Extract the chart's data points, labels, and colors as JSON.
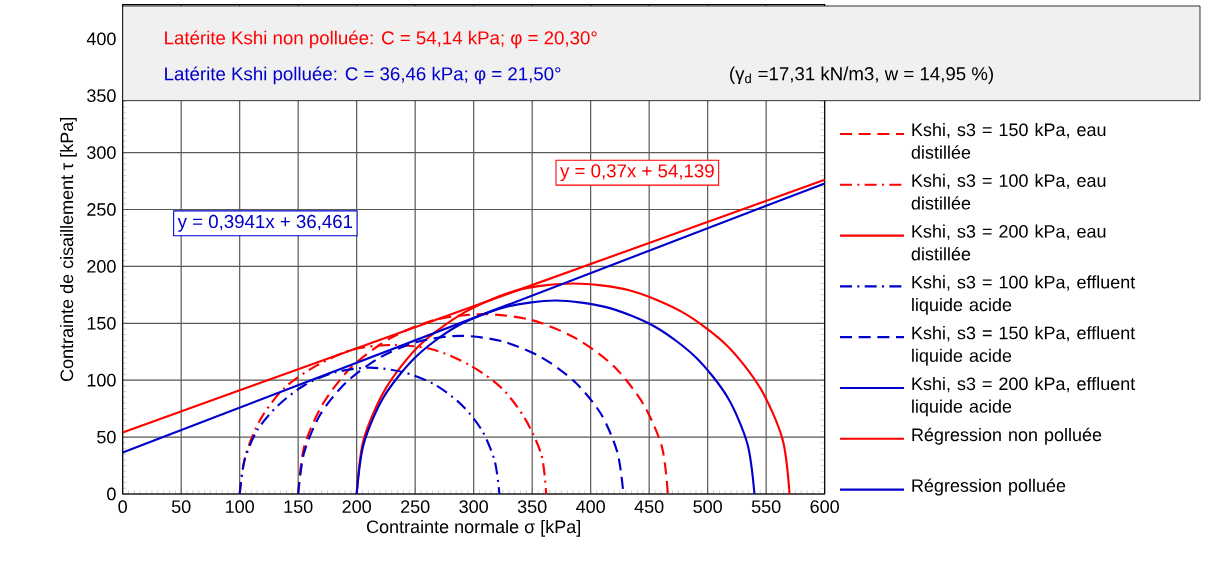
{
  "chart_data": {
    "type": "line",
    "xlabel": "Contrainte normale σ [kPa]",
    "ylabel": "Contrainte de cisaillement τ [kPa]",
    "xlim": [
      0,
      600
    ],
    "ylim": [
      0,
      430
    ],
    "xticks": [
      0,
      50,
      100,
      150,
      200,
      250,
      300,
      350,
      400,
      450,
      500,
      550,
      600
    ],
    "yticks": [
      0,
      50,
      100,
      150,
      200,
      250,
      300,
      350,
      400
    ],
    "grid": true,
    "legend": "right",
    "marker": "none",
    "annotations": [
      "Latérite Kshi non polluée: C = 54,14 kPa; φ = 20,30°",
      "Latérite Kshi polluée: C = 36,46 kPa; φ = 21,50°",
      "(γ$_{d}$ =17,31 kN/m3,  w = 14,95 %)",
      "y = 0,37x + 54,139",
      "y = 0,3941x + 36,461"
    ],
    "series": [
      {
        "name": "Kshi, s3 = 150 kPa, eau distillée",
        "color": "#ff0000",
        "line_style": "dashed",
        "x": [
          150,
          155,
          171,
          196,
          229,
          267,
          308,
          349,
          387,
          420,
          445,
          461,
          466
        ],
        "values": [
          0,
          41,
          79,
          112,
          137,
          153,
          158,
          153,
          137,
          112,
          79,
          41,
          0
        ]
      },
      {
        "name": "Kshi, s3 = 100 kPa, eau distillée",
        "color": "#ff0000",
        "line_style": "dashdot",
        "x": [
          100,
          105,
          118,
          138,
          166,
          197,
          231,
          265,
          297,
          324,
          344,
          358,
          362
        ],
        "values": [
          0,
          34,
          66,
          93,
          113,
          127,
          131,
          127,
          113,
          93,
          66,
          34,
          0
        ]
      },
      {
        "name": "Kshi, s3 = 200 kPa, eau distillée",
        "color": "#ff0000",
        "line_style": "solid",
        "x": [
          200,
          206,
          225,
          254,
          293,
          337,
          385,
          433,
          478,
          516,
          545,
          564,
          570
        ],
        "values": [
          0,
          48,
          93,
          131,
          160,
          179,
          185,
          179,
          160,
          131,
          93,
          48,
          0
        ]
      },
      {
        "name": "Kshi, s3 = 100 kPa, effluent liquide acide",
        "color": "#0000cc",
        "line_style": "dashdot",
        "x": [
          100,
          104,
          115,
          133,
          156,
          182,
          211,
          240,
          267,
          290,
          307,
          318,
          322
        ],
        "values": [
          0,
          29,
          56,
          78,
          96,
          107,
          111,
          107,
          96,
          78,
          56,
          29,
          0
        ]
      },
      {
        "name": "Kshi, s3 = 150 kPa, effluent liquide acide",
        "color": "#0000cc",
        "line_style": "dashed",
        "x": [
          150,
          155,
          169,
          191,
          220,
          253,
          289,
          325,
          358,
          387,
          409,
          423,
          428
        ],
        "values": [
          0,
          36,
          70,
          98,
          120,
          134,
          139,
          134,
          120,
          98,
          70,
          36,
          0
        ]
      },
      {
        "name": "Kshi, s3 = 200 kPa, effluent liquide acide",
        "color": "#0000cc",
        "line_style": "solid",
        "x": [
          200,
          206,
          223,
          250,
          285,
          326,
          370,
          414,
          455,
          490,
          517,
          534,
          540
        ],
        "values": [
          0,
          44,
          85,
          120,
          147,
          164,
          170,
          164,
          147,
          120,
          85,
          44,
          0
        ]
      },
      {
        "name": "Régression non polluée",
        "color": "#ff0000",
        "line_style": "solid",
        "x": [
          0,
          600
        ],
        "values": [
          54.1,
          276.1
        ]
      },
      {
        "name": "Régression polluée",
        "color": "#0000cc",
        "line_style": "solid",
        "x": [
          0,
          600
        ],
        "values": [
          36.5,
          272.9
        ]
      }
    ]
  }
}
